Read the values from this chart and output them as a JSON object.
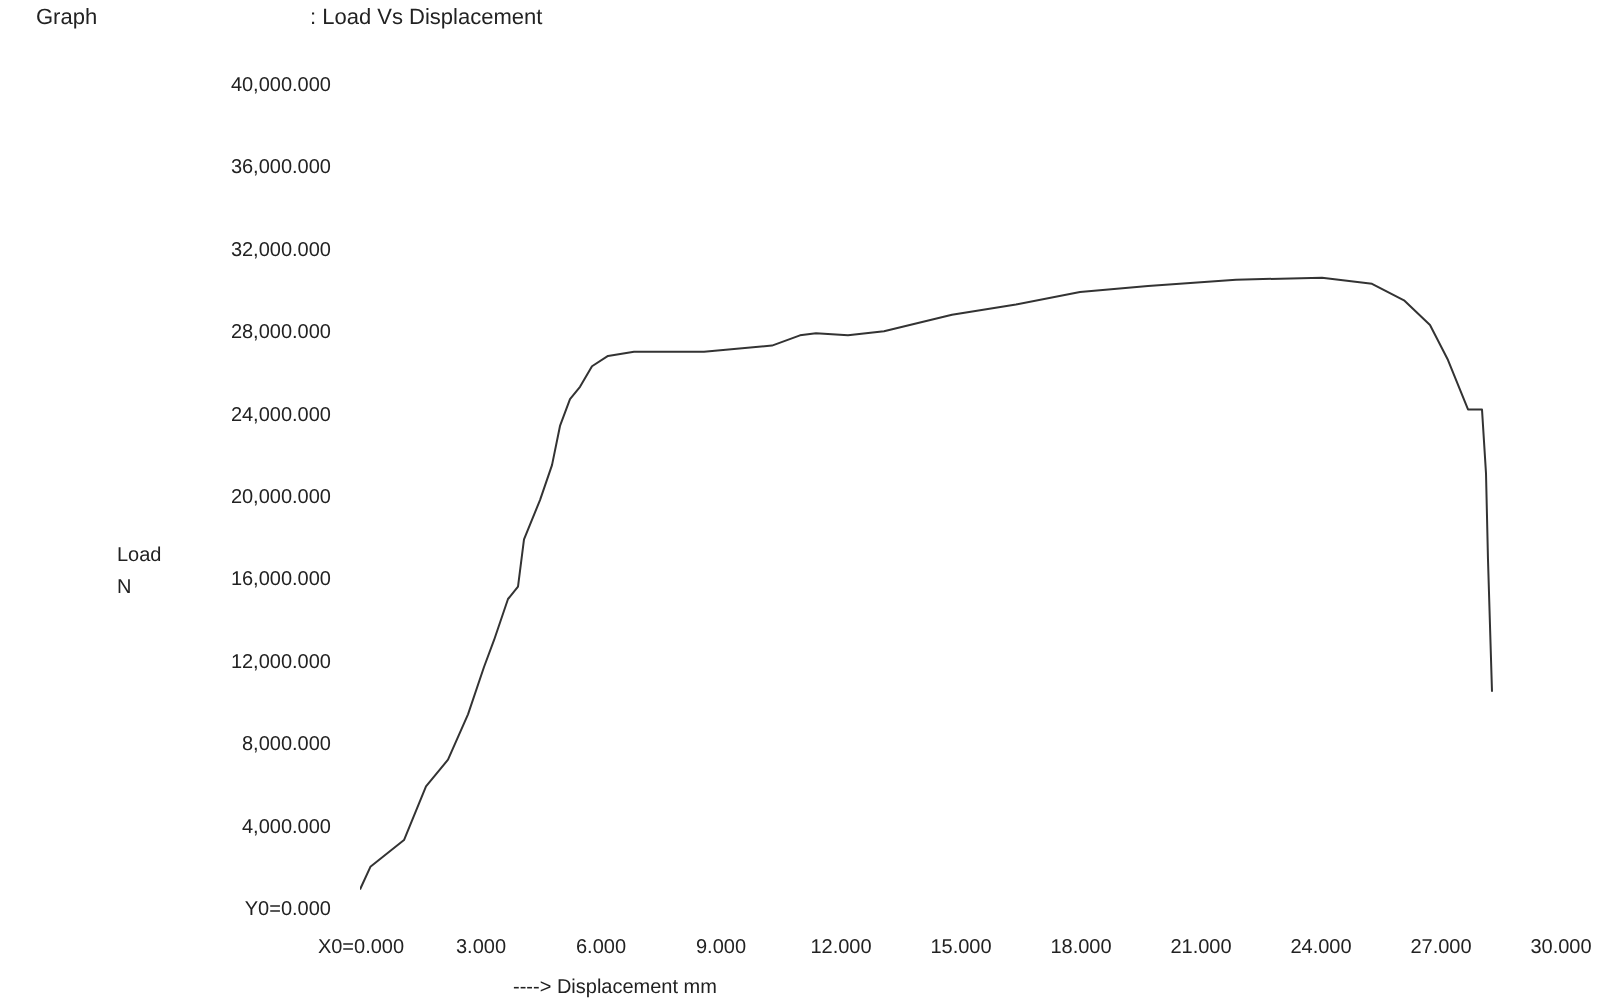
{
  "chart_data": {
    "type": "line",
    "title": "Graph",
    "subtitle": ": Load Vs Displacement",
    "xlabel": "----> Displacement mm",
    "ylabel": "Load N",
    "x": [
      0,
      0.26,
      1.1,
      1.65,
      2.2,
      2.7,
      3.1,
      3.35,
      3.7,
      3.95,
      4.1,
      4.5,
      4.8,
      5.0,
      5.25,
      5.5,
      5.8,
      6.2,
      6.85,
      7.9,
      8.6,
      10.3,
      11.0,
      11.4,
      12.2,
      13.1,
      14.8,
      16.4,
      18.0,
      19.7,
      21.9,
      24.05,
      25.3,
      26.1,
      26.75,
      27.2,
      27.7,
      28.05,
      28.15,
      28.2,
      28.3
    ],
    "series": [
      {
        "color": "#333333",
        "values": [
          900,
          2000,
          3300,
          5900,
          7200,
          9400,
          11700,
          13000,
          15000,
          15600,
          17900,
          19800,
          21500,
          23400,
          24700,
          25300,
          26300,
          26800,
          27000,
          27000,
          27000,
          27300,
          27800,
          27900,
          27800,
          28000,
          28800,
          29300,
          29900,
          30200,
          30500,
          30600,
          30300,
          29500,
          28300,
          26600,
          24200,
          24200,
          21100,
          16900,
          10500
        ]
      }
    ],
    "xlim": [
      0,
      30
    ],
    "ylim": [
      0,
      40000
    ],
    "xticks": [
      {
        "value": 0,
        "label": "X0=0.000"
      },
      {
        "value": 3,
        "label": "3.000"
      },
      {
        "value": 6,
        "label": "6.000"
      },
      {
        "value": 9,
        "label": "9.000"
      },
      {
        "value": 12,
        "label": "12.000"
      },
      {
        "value": 15,
        "label": "15.000"
      },
      {
        "value": 18,
        "label": "18.000"
      },
      {
        "value": 21,
        "label": "21.000"
      },
      {
        "value": 24,
        "label": "24.000"
      },
      {
        "value": 27,
        "label": "27.000"
      },
      {
        "value": 30,
        "label": "30.000"
      }
    ],
    "yticks": [
      {
        "value": 0,
        "label": "Y0=0.000"
      },
      {
        "value": 4000,
        "label": "4,000.000"
      },
      {
        "value": 8000,
        "label": "8,000.000"
      },
      {
        "value": 12000,
        "label": "12,000.000"
      },
      {
        "value": 16000,
        "label": "16,000.000"
      },
      {
        "value": 20000,
        "label": "20,000.000"
      },
      {
        "value": 24000,
        "label": "24,000.000"
      },
      {
        "value": 28000,
        "label": "28,000.000"
      },
      {
        "value": 32000,
        "label": "32,000.000"
      },
      {
        "value": 36000,
        "label": "36,000.000"
      },
      {
        "value": 40000,
        "label": "40,000.000"
      }
    ],
    "grid": false,
    "legend": false,
    "marker": "none",
    "line_style": "solid"
  }
}
